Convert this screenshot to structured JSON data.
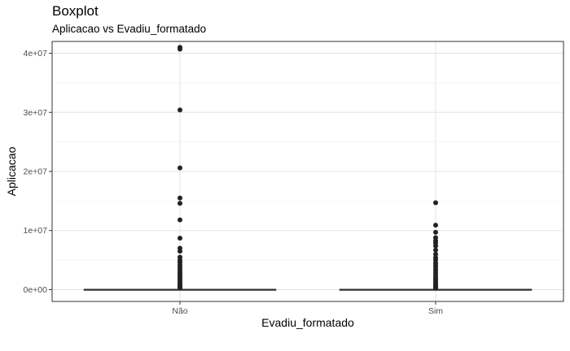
{
  "chart_data": {
    "type": "boxplot",
    "title": "Boxplot",
    "subtitle": "Aplicacao vs Evadiu_formatado",
    "xlabel": "Evadiu_formatado",
    "ylabel": "Aplicacao",
    "categories": [
      "Não",
      "Sim"
    ],
    "ylim": [
      -2000000,
      42000000
    ],
    "yticks": [
      0,
      10000000,
      20000000,
      30000000,
      40000000
    ],
    "yticklabels": [
      "0e+00",
      "1e+07",
      "2e+07",
      "3e+07",
      "4e+07"
    ],
    "grid": true,
    "boxes": [
      {
        "category": "Não",
        "q1": 0,
        "median": 0,
        "q3": 50000
      },
      {
        "category": "Sim",
        "q1": 0,
        "median": 0,
        "q3": 50000
      }
    ],
    "outliers": [
      {
        "category": "Não",
        "values": [
          41000000,
          40700000,
          30400000,
          20600000,
          15500000,
          14600000,
          11800000,
          8700000,
          7000000,
          6500000,
          5500000,
          5000000,
          4600000,
          4200000,
          3800000,
          3400000,
          3000000,
          2700000,
          2400000,
          2100000,
          1800000,
          1500000,
          1200000,
          1000000,
          800000,
          600000,
          450000,
          300000
        ]
      },
      {
        "category": "Sim",
        "values": [
          14700000,
          10900000,
          9700000,
          8800000,
          8300000,
          7900000,
          7400000,
          6700000,
          6000000,
          5400000,
          5000000,
          4500000,
          4100000,
          3700000,
          3300000,
          2900000,
          2500000,
          2100000,
          1800000,
          1500000,
          1200000,
          900000,
          700000,
          500000,
          350000,
          250000
        ]
      }
    ]
  }
}
